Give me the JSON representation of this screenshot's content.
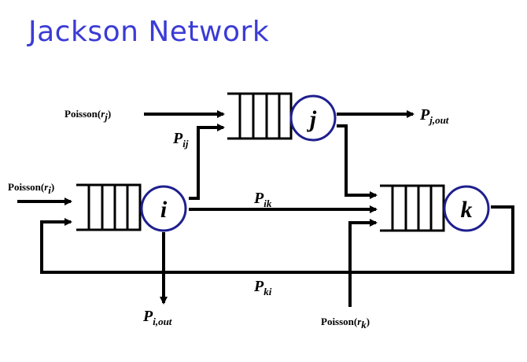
{
  "title": "Jackson Network",
  "nodes": {
    "i": {
      "letter": "i"
    },
    "j": {
      "letter": "j"
    },
    "k": {
      "letter": "k"
    }
  },
  "sources": {
    "rj": {
      "text": "Poisson(",
      "sym": "r",
      "sub": "j",
      "close": ")"
    },
    "ri": {
      "text": "Poisson(",
      "sym": "r",
      "sub": "i",
      "close": ")"
    },
    "rk": {
      "text": "Poisson(",
      "sym": "r",
      "sub": "k",
      "close": ")"
    }
  },
  "routes": {
    "pij": {
      "main": "P",
      "sub": "ij"
    },
    "pik": {
      "main": "P",
      "sub": "ik"
    },
    "pki": {
      "main": "P",
      "sub": "ki"
    },
    "pjout": {
      "main": "P",
      "sub": "j,out"
    },
    "piout": {
      "main": "P",
      "sub": "i,out"
    }
  }
}
